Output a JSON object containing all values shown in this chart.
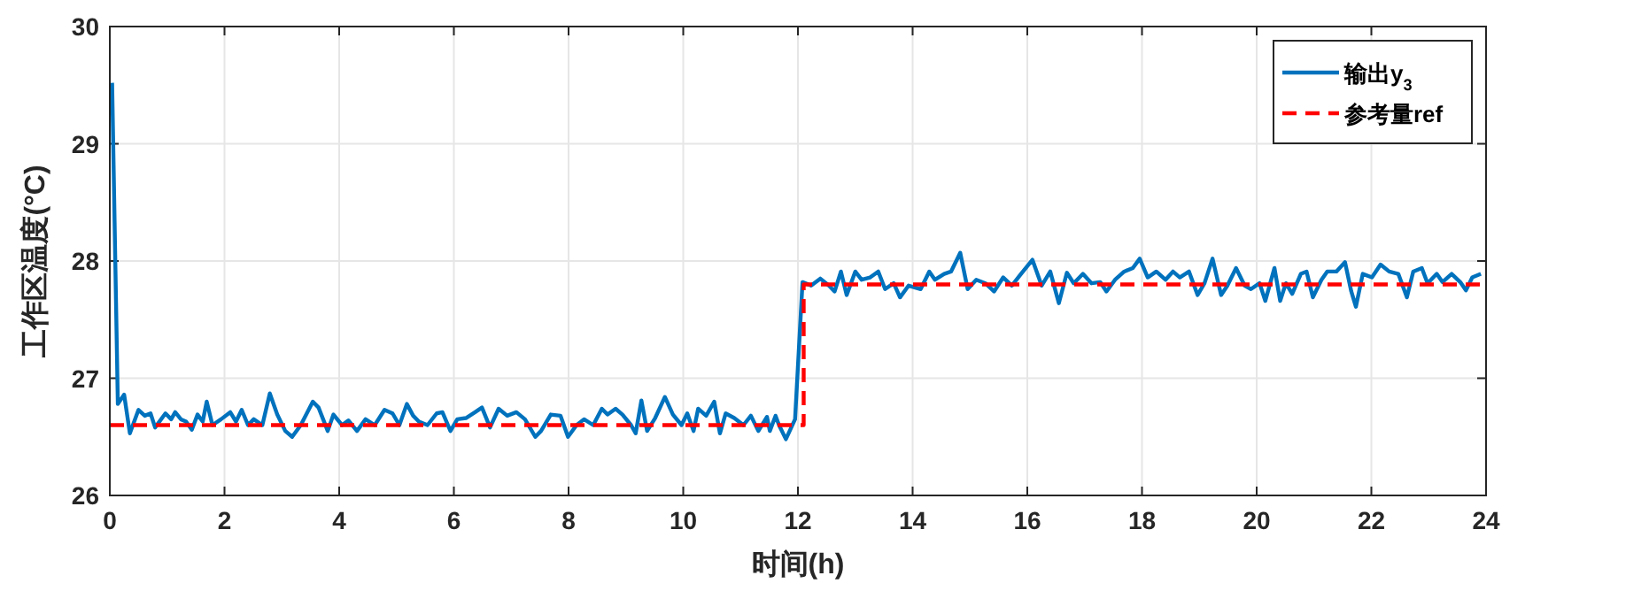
{
  "chart_data": {
    "type": "line",
    "xlabel": "时间(h)",
    "ylabel": "工作区温度(°C)",
    "xlim": [
      0,
      24
    ],
    "ylim": [
      26,
      30
    ],
    "xticks": [
      0,
      2,
      4,
      6,
      8,
      10,
      12,
      14,
      16,
      18,
      20,
      22,
      24
    ],
    "yticks": [
      26,
      27,
      28,
      29,
      30
    ],
    "grid": true,
    "legend": "top right",
    "marker": "none",
    "series": [
      {
        "name": "输出y$_{3}$",
        "color": "#0072bd",
        "line_style": "solid",
        "x": [
          0.04,
          0.14,
          0.25,
          0.35,
          0.5,
          0.61,
          0.71,
          0.79,
          0.97,
          1.07,
          1.14,
          1.24,
          1.33,
          1.43,
          1.53,
          1.62,
          1.69,
          1.79,
          1.94,
          2.1,
          2.2,
          2.3,
          2.41,
          2.51,
          2.66,
          2.79,
          2.92,
          3.06,
          3.18,
          3.33,
          3.54,
          3.64,
          3.8,
          3.9,
          4.05,
          4.16,
          4.31,
          4.46,
          4.62,
          4.79,
          4.93,
          5.05,
          5.18,
          5.29,
          5.39,
          5.54,
          5.7,
          5.8,
          5.94,
          6.06,
          6.21,
          6.37,
          6.49,
          6.63,
          6.78,
          6.93,
          7.09,
          7.24,
          7.42,
          7.52,
          7.69,
          7.86,
          7.99,
          8.14,
          8.27,
          8.43,
          8.58,
          8.68,
          8.82,
          8.94,
          9.09,
          9.17,
          9.27,
          9.37,
          9.51,
          9.68,
          9.82,
          9.97,
          10.07,
          10.18,
          10.26,
          10.4,
          10.54,
          10.64,
          10.74,
          10.89,
          11.05,
          11.18,
          11.31,
          11.46,
          11.51,
          11.61,
          11.67,
          11.79,
          11.95,
          12.08,
          12.23,
          12.39,
          12.54,
          12.64,
          12.75,
          12.85,
          13.0,
          13.11,
          13.26,
          13.4,
          13.52,
          13.67,
          13.78,
          13.93,
          14.14,
          14.29,
          14.39,
          14.55,
          14.67,
          14.83,
          14.96,
          15.11,
          15.27,
          15.42,
          15.58,
          15.73,
          15.89,
          16.09,
          16.25,
          16.4,
          16.55,
          16.69,
          16.81,
          16.97,
          17.12,
          17.27,
          17.38,
          17.53,
          17.69,
          17.84,
          17.96,
          18.1,
          18.25,
          18.41,
          18.54,
          18.66,
          18.82,
          18.97,
          19.09,
          19.23,
          19.38,
          19.49,
          19.64,
          19.79,
          19.9,
          20.05,
          20.15,
          20.31,
          20.41,
          20.51,
          20.62,
          20.77,
          20.87,
          20.98,
          21.13,
          21.23,
          21.39,
          21.54,
          21.65,
          21.73,
          21.85,
          22.01,
          22.16,
          22.31,
          22.47,
          22.62,
          22.73,
          22.88,
          22.98,
          23.14,
          23.24,
          23.4,
          23.55,
          23.65,
          23.76,
          23.91
        ],
        "values": [
          29.52,
          26.78,
          26.86,
          26.53,
          26.73,
          26.68,
          26.7,
          26.58,
          26.7,
          26.65,
          26.71,
          26.65,
          26.63,
          26.56,
          26.69,
          26.63,
          26.8,
          26.6,
          26.65,
          26.71,
          26.63,
          26.73,
          26.6,
          26.65,
          26.6,
          26.87,
          26.69,
          26.55,
          26.5,
          26.6,
          26.8,
          26.75,
          26.55,
          26.69,
          26.6,
          26.64,
          26.55,
          26.65,
          26.6,
          26.73,
          26.7,
          26.6,
          26.78,
          26.68,
          26.63,
          26.6,
          26.7,
          26.71,
          26.55,
          26.65,
          26.66,
          26.71,
          26.75,
          26.58,
          26.74,
          26.68,
          26.71,
          26.65,
          26.5,
          26.55,
          26.69,
          26.68,
          26.5,
          26.6,
          26.65,
          26.6,
          26.74,
          26.69,
          26.74,
          26.69,
          26.6,
          26.53,
          26.81,
          26.55,
          26.66,
          26.84,
          26.69,
          26.6,
          26.7,
          26.55,
          26.74,
          26.68,
          26.8,
          26.53,
          26.7,
          26.66,
          26.6,
          26.68,
          26.55,
          26.67,
          26.55,
          26.68,
          26.6,
          26.48,
          26.65,
          27.82,
          27.79,
          27.85,
          27.79,
          27.74,
          27.91,
          27.71,
          27.91,
          27.84,
          27.86,
          27.91,
          27.76,
          27.81,
          27.69,
          27.79,
          27.76,
          27.91,
          27.84,
          27.89,
          27.91,
          28.07,
          27.76,
          27.84,
          27.81,
          27.74,
          27.86,
          27.79,
          27.89,
          28.01,
          27.79,
          27.91,
          27.64,
          27.9,
          27.81,
          27.89,
          27.81,
          27.82,
          27.74,
          27.84,
          27.91,
          27.94,
          28.02,
          27.86,
          27.91,
          27.84,
          27.91,
          27.86,
          27.91,
          27.71,
          27.81,
          28.02,
          27.71,
          27.79,
          27.94,
          27.79,
          27.76,
          27.81,
          27.66,
          27.94,
          27.66,
          27.81,
          27.72,
          27.89,
          27.91,
          27.69,
          27.84,
          27.91,
          27.91,
          27.99,
          27.74,
          27.61,
          27.89,
          27.86,
          27.97,
          27.91,
          27.89,
          27.69,
          27.91,
          27.94,
          27.81,
          27.89,
          27.82,
          27.89,
          27.82,
          27.75,
          27.86,
          27.89
        ]
      },
      {
        "name": "参考量ref",
        "color": "#ff0000",
        "line_style": "dashed",
        "x": [
          0,
          12.1,
          12.1,
          24
        ],
        "values": [
          26.6,
          26.6,
          27.8,
          27.8
        ]
      }
    ]
  }
}
